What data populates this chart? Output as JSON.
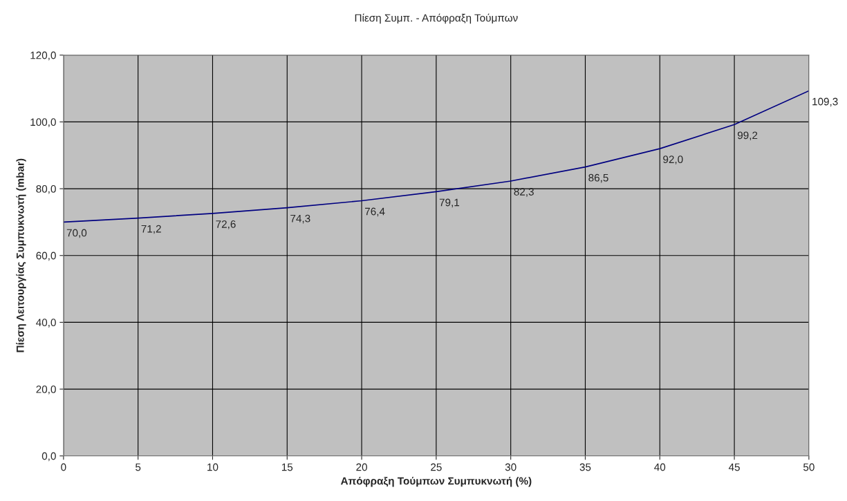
{
  "chart_data": {
    "type": "line",
    "title": "Πίεση Συμπ. - Απόφραξη Τούμπων",
    "xlabel": "Απόφραξη Τούμπων Συμπυκνωτή (%)",
    "ylabel": "Πίεση Λειτουργίας Συμπυκνωτή (mbar)",
    "x": [
      0,
      5,
      10,
      15,
      20,
      25,
      30,
      35,
      40,
      45,
      50
    ],
    "series": [
      {
        "color": "#000080",
        "values": [
          70.0,
          71.2,
          72.6,
          74.3,
          76.4,
          79.1,
          82.3,
          86.5,
          92.0,
          99.2,
          109.3
        ],
        "value_labels": [
          "70,0",
          "71,2",
          "72,6",
          "74,3",
          "76,4",
          "79,1",
          "82,3",
          "86,5",
          "92,0",
          "99,2",
          "109,3"
        ]
      }
    ],
    "xlim": [
      0,
      50
    ],
    "xticks": [
      0,
      5,
      10,
      15,
      20,
      25,
      30,
      35,
      40,
      45,
      50
    ],
    "ylim": [
      0,
      120
    ],
    "yticks": [
      {
        "value": 0,
        "label": "0,0"
      },
      {
        "value": 20,
        "label": "20,0"
      },
      {
        "value": 40,
        "label": "40,0"
      },
      {
        "value": 60,
        "label": "60,0"
      },
      {
        "value": 80,
        "label": "80,0"
      },
      {
        "value": 100,
        "label": "100,0"
      },
      {
        "value": 120,
        "label": "120,0"
      }
    ],
    "grid": true,
    "marker": "none",
    "line_style": "solid"
  }
}
